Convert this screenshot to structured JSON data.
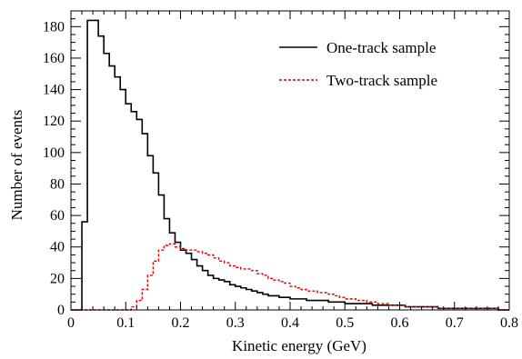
{
  "chart_data": {
    "type": "histogram",
    "title": "",
    "xlabel": "Kinetic energy (GeV)",
    "ylabel": "Number of events",
    "xlim": [
      0,
      0.8
    ],
    "ylim": [
      0,
      190
    ],
    "xticks": [
      "0",
      "0.1",
      "0.2",
      "0.3",
      "0.4",
      "0.5",
      "0.6",
      "0.7",
      "0.8"
    ],
    "yticks": [
      "0",
      "20",
      "40",
      "60",
      "80",
      "100",
      "120",
      "140",
      "160",
      "180"
    ],
    "legend_position": "top-right",
    "bin_width": 0.01,
    "bin_start": 0.0,
    "series": [
      {
        "name": "One-track sample",
        "color": "#000000",
        "style": "solid",
        "values": [
          0,
          0,
          56,
          184,
          184,
          174,
          163,
          155,
          148,
          140,
          131,
          126,
          121,
          112,
          98,
          87,
          73,
          58,
          49,
          43,
          38,
          36,
          32,
          28,
          25,
          22,
          20,
          19,
          18,
          16,
          15,
          14,
          13,
          12,
          11,
          10,
          9,
          9,
          8,
          8,
          7,
          7,
          7,
          6,
          6,
          6,
          6,
          5,
          5,
          5,
          4,
          4,
          4,
          4,
          4,
          3,
          3,
          3,
          3,
          3,
          3,
          2,
          2,
          2,
          2,
          2,
          2,
          1,
          1,
          1,
          1,
          1,
          1,
          1,
          1,
          1,
          1,
          1,
          0,
          0
        ]
      },
      {
        "name": "Two-track sample",
        "color": "#e00000",
        "style": "dashed",
        "values": [
          0,
          0,
          0,
          0,
          0,
          0,
          0,
          0,
          0,
          0,
          0,
          2,
          6,
          13,
          22,
          31,
          38,
          41,
          42,
          40,
          39,
          38,
          38,
          37,
          36,
          35,
          33,
          31,
          30,
          28,
          27,
          26,
          26,
          25,
          23,
          22,
          20,
          19,
          18,
          17,
          15,
          14,
          13,
          12,
          12,
          11,
          11,
          10,
          9,
          8,
          7,
          7,
          6,
          6,
          5,
          5,
          4,
          4,
          3,
          3,
          3,
          2,
          2,
          2,
          2,
          2,
          2,
          1,
          1,
          1,
          1,
          1,
          1,
          1,
          1,
          1,
          1,
          1,
          0,
          0
        ]
      }
    ]
  }
}
